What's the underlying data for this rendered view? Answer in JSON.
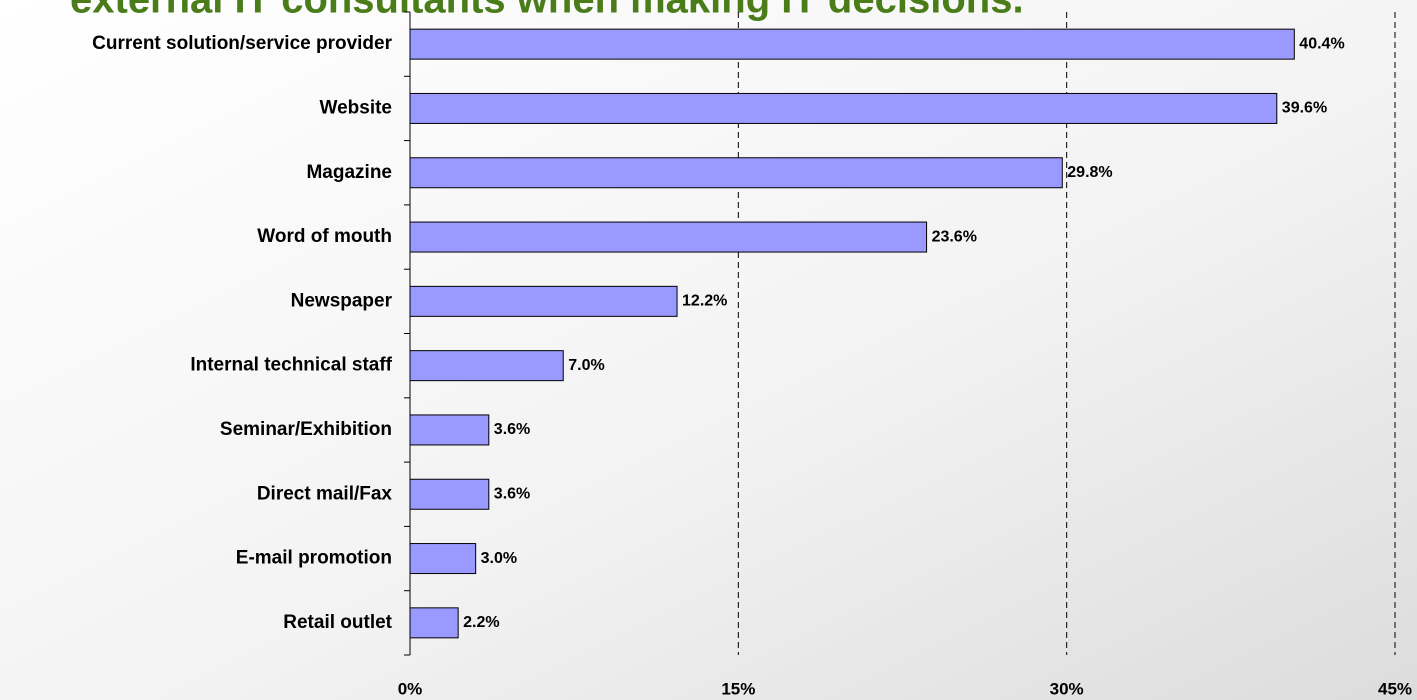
{
  "chart_data": {
    "type": "bar",
    "orientation": "horizontal",
    "title": "external IT consultants when making IT decisions.",
    "categories": [
      "Current solution/service provider",
      "Website",
      "Magazine",
      "Word of mouth",
      "Newspaper",
      "Internal technical staff",
      "Seminar/Exhibition",
      "Direct mail/Fax",
      "E-mail promotion",
      "Retail outlet"
    ],
    "values": [
      40.4,
      39.6,
      29.8,
      23.6,
      12.2,
      7.0,
      3.6,
      3.6,
      3.0,
      2.2
    ],
    "value_labels": [
      "40.4%",
      "39.6%",
      "29.8%",
      "23.6%",
      "12.2%",
      "7.0%",
      "3.6%",
      "3.6%",
      "3.0%",
      "2.2%"
    ],
    "color": "#9999ff",
    "xlim": [
      0,
      45
    ],
    "xticks": [
      {
        "value": 0,
        "label": "0%"
      },
      {
        "value": 15,
        "label": "15%"
      },
      {
        "value": 30,
        "label": "30%"
      },
      {
        "value": 45,
        "label": "45%"
      }
    ],
    "grid": true
  }
}
